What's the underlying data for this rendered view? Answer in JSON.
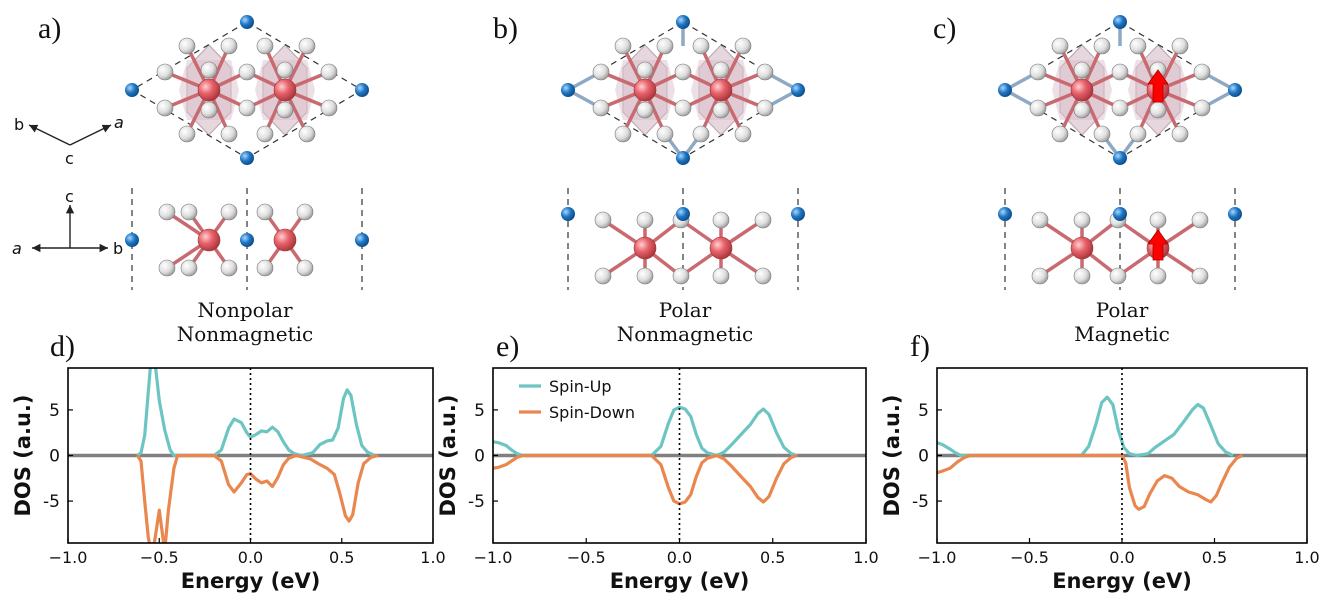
{
  "panels": {
    "a": "a)",
    "b": "b)",
    "c": "c)",
    "d": "d)",
    "e": "e)",
    "f": "f)"
  },
  "axes_labels": {
    "top": {
      "b": "b",
      "a": "a",
      "c": "c"
    },
    "side": {
      "c": "c",
      "a": "a",
      "b": "b"
    }
  },
  "structures": [
    {
      "line1": "Nonpolar",
      "line2": "Nonmagnetic"
    },
    {
      "line1": "Polar",
      "line2": "Nonmagnetic"
    },
    {
      "line1": "Polar",
      "line2": "Magnetic"
    }
  ],
  "colors": {
    "spin_up": "#6cc5c2",
    "spin_down": "#e9874e",
    "zero_line": "#808080",
    "metal_atom": "#e8636b",
    "ligand_atom": "#dcdcdc",
    "alkali_atom": "#1f77c4",
    "octahedron": "#c8a6b8",
    "moment_arrow": "#ff0000"
  },
  "chart_data": [
    {
      "type": "line",
      "xlabel": "Energy (eV)",
      "ylabel": "DOS (a.u.)",
      "xlim": [
        -1.0,
        1.0
      ],
      "ylim": [
        -9.6,
        9.6
      ],
      "xticks": [
        "-1.0",
        "-0.5",
        "0.0",
        "0.5",
        "1.0"
      ],
      "yticks": [
        "5",
        "0",
        "-5"
      ],
      "fermi_level": 0.0,
      "series": [
        {
          "values": [
            [
              -0.62,
              0
            ],
            [
              -0.6,
              0.3
            ],
            [
              -0.58,
              2.2
            ],
            [
              -0.56,
              7.0
            ],
            [
              -0.545,
              10.5
            ],
            [
              -0.525,
              10.5
            ],
            [
              -0.5,
              6.0
            ],
            [
              -0.47,
              2.8
            ],
            [
              -0.44,
              0.6
            ],
            [
              -0.42,
              0
            ],
            [
              -0.2,
              0
            ],
            [
              -0.16,
              0.6
            ],
            [
              -0.12,
              3.0
            ],
            [
              -0.09,
              4.0
            ],
            [
              -0.05,
              3.6
            ],
            [
              -0.02,
              2.5
            ],
            [
              0.0,
              2.0
            ],
            [
              0.03,
              2.3
            ],
            [
              0.06,
              2.7
            ],
            [
              0.09,
              2.6
            ],
            [
              0.12,
              3.1
            ],
            [
              0.15,
              2.6
            ],
            [
              0.18,
              1.5
            ],
            [
              0.21,
              0.6
            ],
            [
              0.24,
              0.2
            ],
            [
              0.28,
              0
            ],
            [
              0.34,
              0.3
            ],
            [
              0.38,
              1.2
            ],
            [
              0.42,
              1.6
            ],
            [
              0.45,
              1.7
            ],
            [
              0.48,
              3.0
            ],
            [
              0.51,
              6.3
            ],
            [
              0.53,
              7.2
            ],
            [
              0.55,
              6.6
            ],
            [
              0.58,
              3.4
            ],
            [
              0.61,
              1.1
            ],
            [
              0.64,
              0.4
            ],
            [
              0.68,
              0
            ]
          ]
        },
        {
          "values": [
            [
              -0.62,
              0
            ],
            [
              -0.6,
              -0.6
            ],
            [
              -0.58,
              -5.0
            ],
            [
              -0.56,
              -9.0
            ],
            [
              -0.545,
              -10.5
            ],
            [
              -0.53,
              -10.0
            ],
            [
              -0.5,
              -6.0
            ],
            [
              -0.47,
              -10.5
            ],
            [
              -0.45,
              -6.0
            ],
            [
              -0.42,
              -1.4
            ],
            [
              -0.4,
              0
            ],
            [
              -0.2,
              0
            ],
            [
              -0.16,
              -0.6
            ],
            [
              -0.12,
              -3.2
            ],
            [
              -0.09,
              -4.0
            ],
            [
              -0.05,
              -3.0
            ],
            [
              -0.02,
              -2.1
            ],
            [
              0.0,
              -2.0
            ],
            [
              0.03,
              -2.6
            ],
            [
              0.06,
              -3.0
            ],
            [
              0.09,
              -2.8
            ],
            [
              0.12,
              -3.4
            ],
            [
              0.15,
              -2.4
            ],
            [
              0.18,
              -1.0
            ],
            [
              0.21,
              -0.3
            ],
            [
              0.25,
              0
            ],
            [
              0.33,
              -0.4
            ],
            [
              0.38,
              -1.0
            ],
            [
              0.42,
              -1.4
            ],
            [
              0.46,
              -2.1
            ],
            [
              0.49,
              -4.2
            ],
            [
              0.52,
              -6.6
            ],
            [
              0.54,
              -7.2
            ],
            [
              0.56,
              -6.5
            ],
            [
              0.59,
              -3.0
            ],
            [
              0.62,
              -0.9
            ],
            [
              0.66,
              -0.2
            ],
            [
              0.7,
              0
            ]
          ]
        }
      ]
    },
    {
      "type": "line",
      "xlabel": "Energy (eV)",
      "ylabel": "DOS (a.u.)",
      "xlim": [
        -1.0,
        1.0
      ],
      "ylim": [
        -9.6,
        9.6
      ],
      "xticks": [
        "-1.0",
        "-0.5",
        "0.0",
        "0.5",
        "1.0"
      ],
      "yticks": [
        "5",
        "0",
        "-5"
      ],
      "fermi_level": 0.0,
      "legend": {
        "placement": "top-left",
        "entries": [
          "Spin-Up",
          "Spin-Down"
        ]
      },
      "series": [
        {
          "name": "Spin-Up",
          "values": [
            [
              -1.0,
              1.5
            ],
            [
              -0.97,
              1.4
            ],
            [
              -0.93,
              1.1
            ],
            [
              -0.9,
              0.6
            ],
            [
              -0.87,
              0.2
            ],
            [
              -0.84,
              0
            ],
            [
              -0.15,
              0
            ],
            [
              -0.1,
              1.0
            ],
            [
              -0.06,
              3.5
            ],
            [
              -0.03,
              5.0
            ],
            [
              0.0,
              5.3
            ],
            [
              0.03,
              5.1
            ],
            [
              0.06,
              4.3
            ],
            [
              0.09,
              2.3
            ],
            [
              0.12,
              0.8
            ],
            [
              0.15,
              0.3
            ],
            [
              0.2,
              0
            ],
            [
              0.24,
              0.4
            ],
            [
              0.28,
              1.2
            ],
            [
              0.33,
              2.3
            ],
            [
              0.38,
              3.4
            ],
            [
              0.42,
              4.6
            ],
            [
              0.45,
              5.1
            ],
            [
              0.48,
              4.5
            ],
            [
              0.52,
              2.5
            ],
            [
              0.56,
              0.9
            ],
            [
              0.6,
              0.2
            ],
            [
              0.63,
              0
            ]
          ]
        },
        {
          "name": "Spin-Down",
          "values": [
            [
              -1.0,
              -1.4
            ],
            [
              -0.97,
              -1.3
            ],
            [
              -0.93,
              -1.0
            ],
            [
              -0.9,
              -0.6
            ],
            [
              -0.87,
              -0.2
            ],
            [
              -0.84,
              0
            ],
            [
              -0.15,
              0
            ],
            [
              -0.1,
              -1.0
            ],
            [
              -0.06,
              -3.5
            ],
            [
              -0.03,
              -5.0
            ],
            [
              0.0,
              -5.3
            ],
            [
              0.03,
              -5.1
            ],
            [
              0.06,
              -4.3
            ],
            [
              0.09,
              -2.3
            ],
            [
              0.12,
              -0.8
            ],
            [
              0.15,
              -0.3
            ],
            [
              0.2,
              0
            ],
            [
              0.24,
              -0.4
            ],
            [
              0.28,
              -1.2
            ],
            [
              0.33,
              -2.3
            ],
            [
              0.38,
              -3.4
            ],
            [
              0.42,
              -4.6
            ],
            [
              0.45,
              -5.1
            ],
            [
              0.48,
              -4.5
            ],
            [
              0.52,
              -2.5
            ],
            [
              0.56,
              -0.9
            ],
            [
              0.6,
              -0.2
            ],
            [
              0.63,
              0
            ]
          ]
        }
      ]
    },
    {
      "type": "line",
      "xlabel": "Energy (eV)",
      "ylabel": "DOS (a.u.)",
      "xlim": [
        -1.0,
        1.0
      ],
      "ylim": [
        -9.6,
        9.6
      ],
      "xticks": [
        "-1.0",
        "-0.5",
        "0.0",
        "0.5",
        "1.0"
      ],
      "yticks": [
        "5",
        "0",
        "-5"
      ],
      "fermi_level": 0.0,
      "series": [
        {
          "values": [
            [
              -1.0,
              1.4
            ],
            [
              -0.97,
              1.2
            ],
            [
              -0.93,
              0.7
            ],
            [
              -0.9,
              0.3
            ],
            [
              -0.87,
              0
            ],
            [
              -0.22,
              0
            ],
            [
              -0.18,
              1.0
            ],
            [
              -0.14,
              3.5
            ],
            [
              -0.11,
              5.8
            ],
            [
              -0.08,
              6.4
            ],
            [
              -0.05,
              5.6
            ],
            [
              -0.02,
              2.8
            ],
            [
              0.01,
              0.9
            ],
            [
              0.04,
              0.2
            ],
            [
              0.08,
              0
            ],
            [
              0.14,
              0.2
            ],
            [
              0.18,
              0.9
            ],
            [
              0.23,
              1.6
            ],
            [
              0.28,
              2.3
            ],
            [
              0.33,
              3.6
            ],
            [
              0.38,
              5.0
            ],
            [
              0.41,
              5.6
            ],
            [
              0.44,
              5.2
            ],
            [
              0.48,
              3.3
            ],
            [
              0.52,
              1.3
            ],
            [
              0.56,
              0.4
            ],
            [
              0.6,
              0
            ]
          ]
        },
        {
          "values": [
            [
              -1.0,
              -1.9
            ],
            [
              -0.97,
              -1.7
            ],
            [
              -0.93,
              -1.4
            ],
            [
              -0.89,
              -0.7
            ],
            [
              -0.85,
              -0.2
            ],
            [
              -0.82,
              0
            ],
            [
              0.0,
              0
            ],
            [
              0.02,
              -0.8
            ],
            [
              0.04,
              -3.5
            ],
            [
              0.07,
              -5.5
            ],
            [
              0.09,
              -5.9
            ],
            [
              0.12,
              -5.6
            ],
            [
              0.15,
              -4.2
            ],
            [
              0.19,
              -2.8
            ],
            [
              0.23,
              -2.2
            ],
            [
              0.27,
              -2.5
            ],
            [
              0.31,
              -3.4
            ],
            [
              0.36,
              -4.0
            ],
            [
              0.41,
              -4.3
            ],
            [
              0.45,
              -4.8
            ],
            [
              0.48,
              -5.1
            ],
            [
              0.51,
              -4.4
            ],
            [
              0.54,
              -3.0
            ],
            [
              0.58,
              -1.3
            ],
            [
              0.62,
              -0.3
            ],
            [
              0.65,
              0
            ]
          ]
        }
      ]
    }
  ]
}
